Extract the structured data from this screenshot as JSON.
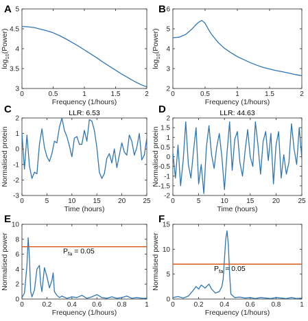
{
  "chart_data": [
    {
      "type": "line",
      "panel": "A",
      "xlabel": "Frequency (1/hours)",
      "ylabel": "log",
      "ylabel_sub": "10",
      "ylabel_suffix": "(Power)",
      "xlim": [
        0,
        2
      ],
      "ylim": [
        3,
        5
      ],
      "xticks": [
        0,
        0.5,
        1,
        1.5,
        2
      ],
      "xtick_labels": [
        "0",
        "0.5",
        "1",
        "1.5",
        "2"
      ],
      "yticks": [
        3,
        3.5,
        4,
        4.5,
        5
      ],
      "ytick_labels": [
        "3",
        "3.5",
        "4",
        "4.5",
        "5"
      ],
      "color": "#2E75B6",
      "x": [
        0,
        0.1,
        0.2,
        0.3,
        0.4,
        0.5,
        0.6,
        0.7,
        0.8,
        0.9,
        1.0,
        1.1,
        1.2,
        1.3,
        1.4,
        1.5,
        1.6,
        1.7,
        1.8,
        1.9,
        2.0
      ],
      "y": [
        4.56,
        4.55,
        4.53,
        4.49,
        4.45,
        4.4,
        4.33,
        4.25,
        4.16,
        4.07,
        3.97,
        3.87,
        3.77,
        3.66,
        3.56,
        3.46,
        3.36,
        3.27,
        3.18,
        3.1,
        3.04
      ]
    },
    {
      "type": "line",
      "panel": "B",
      "xlabel": "Frequency (1/hours)",
      "ylabel": "log",
      "ylabel_sub": "10",
      "ylabel_suffix": "(Power)",
      "xlim": [
        0,
        2
      ],
      "ylim": [
        2,
        6
      ],
      "xticks": [
        0,
        0.5,
        1,
        1.5,
        2
      ],
      "xtick_labels": [
        "0",
        "0.5",
        "1",
        "1.5",
        "2"
      ],
      "yticks": [
        2,
        3,
        4,
        5,
        6
      ],
      "ytick_labels": [
        "2",
        "3",
        "4",
        "5",
        "6"
      ],
      "color": "#2E75B6",
      "x": [
        0,
        0.1,
        0.2,
        0.3,
        0.35,
        0.4,
        0.45,
        0.5,
        0.55,
        0.6,
        0.7,
        0.8,
        0.9,
        1.0,
        1.1,
        1.2,
        1.3,
        1.4,
        1.5,
        1.6,
        1.7,
        1.8,
        1.9,
        2.0
      ],
      "y": [
        4.55,
        4.58,
        4.72,
        5.0,
        5.18,
        5.33,
        5.42,
        5.28,
        4.98,
        4.72,
        4.32,
        4.02,
        3.8,
        3.6,
        3.45,
        3.3,
        3.17,
        3.06,
        2.98,
        2.9,
        2.84,
        2.77,
        2.7,
        2.64
      ]
    },
    {
      "type": "line",
      "panel": "C",
      "title": "LLR: 6.53",
      "xlabel": "Time (hours)",
      "ylabel": "Normalised protein",
      "xlim": [
        0,
        25
      ],
      "ylim": [
        -3,
        2
      ],
      "xticks": [
        0,
        5,
        10,
        15,
        20,
        25
      ],
      "xtick_labels": [
        "0",
        "5",
        "10",
        "15",
        "20",
        "25"
      ],
      "yticks": [
        -3,
        -2,
        -1,
        0,
        1,
        2
      ],
      "ytick_labels": [
        "-3",
        "-2",
        "-1",
        "0",
        "1",
        "2"
      ],
      "color": "#2E75B6",
      "x": [
        0,
        0.5,
        1,
        1.5,
        2,
        2.5,
        3,
        3.5,
        4,
        4.5,
        5,
        5.5,
        6,
        6.5,
        7,
        7.5,
        8,
        8.5,
        9,
        9.5,
        10,
        10.5,
        11,
        11.5,
        12,
        12.5,
        13,
        13.5,
        14,
        14.5,
        15,
        15.5,
        16,
        16.5,
        17,
        17.5,
        18,
        18.5,
        19,
        19.5,
        20,
        20.5,
        21,
        21.5,
        22,
        22.5,
        23,
        23.5,
        24,
        24.5,
        25
      ],
      "y": [
        1.0,
        -1.3,
        0.9,
        -1.1,
        -1.9,
        -1.5,
        -1.6,
        0.3,
        1.3,
        0.1,
        -0.5,
        -0.8,
        -0.3,
        0.5,
        0.4,
        1.4,
        2.0,
        1.2,
        0.8,
        0.2,
        -0.5,
        0.7,
        0.8,
        0.3,
        0.3,
        1.2,
        0.5,
        1.9,
        1.8,
        1.2,
        0.1,
        -1.5,
        -1.9,
        -1.6,
        -0.6,
        -0.3,
        -0.9,
        0.0,
        -1.2,
        -0.4,
        0.4,
        -0.2,
        -0.4,
        0.9,
        0.5,
        -0.4,
        0.1,
        1.0,
        -0.7,
        -0.4,
        0.7
      ]
    },
    {
      "type": "line",
      "panel": "D",
      "title": "LLR: 44.63",
      "xlabel": "Time (hours)",
      "ylabel": "Normalised protein",
      "xlim": [
        0,
        25
      ],
      "ylim": [
        -2,
        2
      ],
      "xticks": [
        0,
        5,
        10,
        15,
        20,
        25
      ],
      "xtick_labels": [
        "0",
        "5",
        "10",
        "15",
        "20",
        "25"
      ],
      "yticks": [
        -2,
        -1.5,
        -1,
        -0.5,
        0,
        0.5,
        1,
        1.5,
        2
      ],
      "ytick_labels": [
        "-2",
        "-1.5",
        "-1",
        "-0.5",
        "0",
        "0.5",
        "1",
        "1.5",
        "2"
      ],
      "color": "#2E75B6",
      "x": [
        0,
        0.5,
        1,
        1.5,
        2,
        2.5,
        3,
        3.5,
        4,
        4.5,
        5,
        5.5,
        6,
        6.5,
        7,
        7.5,
        8,
        8.5,
        9,
        9.5,
        10,
        10.5,
        11,
        11.5,
        12,
        12.5,
        13,
        13.5,
        14,
        14.5,
        15,
        15.5,
        16,
        16.5,
        17,
        17.5,
        18,
        18.5,
        19,
        19.5,
        20,
        20.5,
        21,
        21.5,
        22,
        22.5,
        23,
        23.5,
        24,
        24.5,
        25
      ],
      "y": [
        0.2,
        -1.1,
        0.6,
        -1.5,
        -0.2,
        1.8,
        -0.4,
        -1.1,
        0.3,
        1.5,
        -1.4,
        -0.4,
        -1.9,
        0.5,
        1.6,
        0.1,
        -0.6,
        0.5,
        1.2,
        0.0,
        -1.7,
        0.2,
        1.8,
        -0.7,
        0.9,
        1.3,
        -0.3,
        -1.0,
        0.3,
        1.4,
        0.0,
        -0.5,
        1.8,
        0.6,
        -0.9,
        0.8,
        1.3,
        -0.2,
        1.2,
        -1.4,
        0.6,
        1.3,
        -1.1,
        0.1,
        -0.9,
        -0.3,
        1.7,
        0.4,
        -0.4,
        1.5,
        -0.1
      ]
    },
    {
      "type": "line",
      "panel": "E",
      "xlabel": "Frequency (1/hours)",
      "ylabel": "Normalised power",
      "xlim": [
        0,
        1
      ],
      "ylim": [
        0,
        10
      ],
      "xticks": [
        0,
        0.2,
        0.4,
        0.6,
        0.8,
        1
      ],
      "xtick_labels": [
        "0",
        "0.2",
        "0.4",
        "0.6",
        "0.8",
        "1"
      ],
      "yticks": [
        0,
        2,
        4,
        6,
        8,
        10
      ],
      "ytick_labels": [
        "0",
        "2",
        "4",
        "6",
        "8",
        "10"
      ],
      "color": "#2E75B6",
      "threshold": {
        "value": 7,
        "color": "#D9541A",
        "label_main": "P",
        "label_sub": "fa",
        "label_rest": " = 0.05"
      },
      "x": [
        0,
        0.02,
        0.04,
        0.05,
        0.06,
        0.07,
        0.08,
        0.1,
        0.12,
        0.14,
        0.15,
        0.16,
        0.18,
        0.2,
        0.22,
        0.24,
        0.25,
        0.26,
        0.28,
        0.3,
        0.32,
        0.36,
        0.4,
        0.44,
        0.48,
        0.52,
        0.56,
        0.6,
        0.64,
        0.68,
        0.72,
        0.76,
        0.8,
        0.84,
        0.88,
        0.92,
        0.96,
        1.0
      ],
      "y": [
        0.2,
        0.8,
        4.5,
        8.2,
        5.5,
        1.0,
        0.3,
        1.2,
        4.0,
        4.5,
        2.0,
        1.0,
        4.2,
        3.0,
        1.5,
        2.5,
        3.5,
        1.0,
        0.5,
        0.2,
        0.4,
        0.1,
        0.3,
        0.2,
        0.5,
        0.1,
        0.3,
        0.6,
        0.2,
        0.1,
        0.3,
        0.1,
        0.2,
        0.4,
        0.1,
        0.2,
        0.1,
        0.1
      ]
    },
    {
      "type": "line",
      "panel": "F",
      "xlabel": "Frequency (1/hours)",
      "ylabel": "Normalised power",
      "xlim": [
        0,
        1
      ],
      "ylim": [
        0,
        15
      ],
      "xticks": [
        0,
        0.2,
        0.4,
        0.6,
        0.8,
        1
      ],
      "xtick_labels": [
        "0",
        "0.2",
        "0.4",
        "0.6",
        "0.8",
        "1"
      ],
      "yticks": [
        0,
        5,
        10,
        15
      ],
      "ytick_labels": [
        "0",
        "5",
        "10",
        "15"
      ],
      "color": "#2E75B6",
      "threshold": {
        "value": 7,
        "color": "#D9541A",
        "label_main": "P",
        "label_sub": "fa",
        "label_rest": " = 0.05"
      },
      "x": [
        0,
        0.04,
        0.08,
        0.12,
        0.15,
        0.18,
        0.2,
        0.22,
        0.25,
        0.28,
        0.3,
        0.33,
        0.36,
        0.38,
        0.39,
        0.4,
        0.41,
        0.42,
        0.43,
        0.44,
        0.45,
        0.48,
        0.52,
        0.56,
        0.6,
        0.64,
        0.68,
        0.72,
        0.76,
        0.8,
        0.84,
        0.88,
        0.92,
        0.96,
        1.0
      ],
      "y": [
        0.3,
        0.5,
        0.2,
        0.6,
        1.5,
        2.5,
        2.0,
        2.8,
        2.2,
        3.0,
        2.0,
        1.2,
        1.5,
        2.5,
        4.0,
        8.0,
        12.0,
        13.7,
        11.0,
        5.0,
        1.0,
        0.3,
        0.4,
        0.2,
        0.3,
        0.1,
        0.3,
        0.2,
        0.1,
        0.3,
        0.2,
        0.1,
        0.3,
        0.1,
        0.2
      ]
    }
  ]
}
